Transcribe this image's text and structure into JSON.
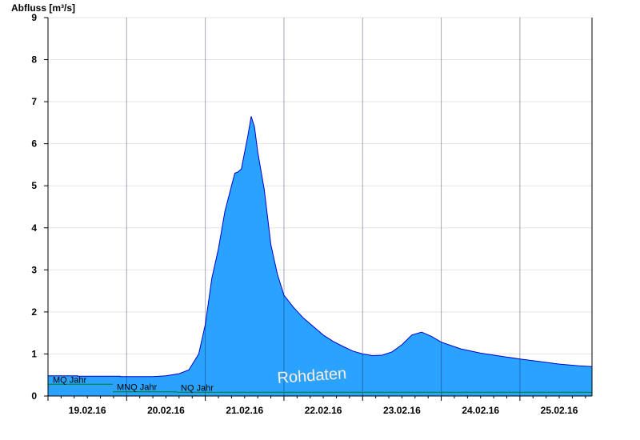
{
  "chart_data": {
    "type": "area",
    "ylabel": "Abfluss [m³/s]",
    "ylim": [
      0,
      9
    ],
    "yticks": [
      0,
      1,
      2,
      3,
      4,
      5,
      6,
      7,
      8,
      9
    ],
    "xlim": [
      "19.02.16 00:00",
      "25.02.16 22:00"
    ],
    "day_labels": [
      "19.02.16",
      "20.02.16",
      "21.02.16",
      "22.02.16",
      "23.02.16",
      "24.02.16",
      "25.02.16"
    ],
    "grid": true,
    "colors": {
      "fill": "#29a3ff",
      "outline": "#0000cc",
      "reference": "#008000"
    },
    "watermark": "Rohdaten",
    "series": [
      {
        "values": [
          [
            "19.02.16 00:00",
            0.48
          ],
          [
            "19.02.16 09:00",
            0.48
          ],
          [
            "19.02.16 09:00",
            0.47
          ],
          [
            "19.02.16 22:00",
            0.47
          ],
          [
            "19.02.16 22:00",
            0.46
          ],
          [
            "20.02.16 08:00",
            0.46
          ],
          [
            "20.02.16 12:00",
            0.48
          ],
          [
            "20.02.16 16:00",
            0.53
          ],
          [
            "20.02.16 19:00",
            0.62
          ],
          [
            "20.02.16 22:00",
            1.0
          ],
          [
            "21.02.16 00:00",
            1.7
          ],
          [
            "21.02.16 02:00",
            2.8
          ],
          [
            "21.02.16 04:00",
            3.5
          ],
          [
            "21.02.16 06:00",
            4.4
          ],
          [
            "21.02.16 08:00",
            5.0
          ],
          [
            "21.02.16 09:00",
            5.3
          ],
          [
            "21.02.16 10:00",
            5.33
          ],
          [
            "21.02.16 11:00",
            5.4
          ],
          [
            "21.02.16 13:00",
            6.2
          ],
          [
            "21.02.16 14:00",
            6.65
          ],
          [
            "21.02.16 15:00",
            6.4
          ],
          [
            "21.02.16 16:00",
            5.8
          ],
          [
            "21.02.16 18:00",
            4.9
          ],
          [
            "21.02.16 20:00",
            3.6
          ],
          [
            "21.02.16 22:00",
            2.9
          ],
          [
            "22.02.16 00:00",
            2.4
          ],
          [
            "22.02.16 03:00",
            2.1
          ],
          [
            "22.02.16 06:00",
            1.85
          ],
          [
            "22.02.16 09:00",
            1.65
          ],
          [
            "22.02.16 12:00",
            1.45
          ],
          [
            "22.02.16 15:00",
            1.3
          ],
          [
            "22.02.16 18:00",
            1.18
          ],
          [
            "22.02.16 21:00",
            1.07
          ],
          [
            "23.02.16 00:00",
            1.0
          ],
          [
            "23.02.16 03:00",
            0.96
          ],
          [
            "23.02.16 06:00",
            0.97
          ],
          [
            "23.02.16 09:00",
            1.05
          ],
          [
            "23.02.16 12:00",
            1.22
          ],
          [
            "23.02.16 15:00",
            1.45
          ],
          [
            "23.02.16 18:00",
            1.52
          ],
          [
            "23.02.16 21:00",
            1.42
          ],
          [
            "24.02.16 00:00",
            1.28
          ],
          [
            "24.02.16 06:00",
            1.12
          ],
          [
            "24.02.16 12:00",
            1.02
          ],
          [
            "24.02.16 18:00",
            0.95
          ],
          [
            "25.02.16 00:00",
            0.88
          ],
          [
            "25.02.16 06:00",
            0.82
          ],
          [
            "25.02.16 12:00",
            0.76
          ],
          [
            "25.02.16 18:00",
            0.72
          ],
          [
            "25.02.16 22:00",
            0.7
          ]
        ]
      }
    ],
    "reference_lines": [
      {
        "label": "MQ Jahr",
        "value": 0.28
      },
      {
        "label": "MNQ Jahr",
        "value": 0.1
      },
      {
        "label": "NQ Jahr",
        "value": 0.09
      }
    ]
  }
}
